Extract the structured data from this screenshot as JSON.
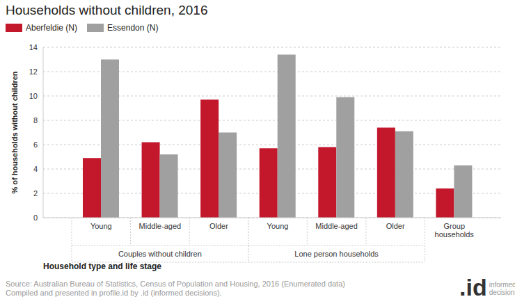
{
  "chart_data": {
    "type": "bar",
    "title": "Households without children, 2016",
    "categories": [
      "Young",
      "Middle-aged",
      "Older",
      "Young",
      "Middle-aged",
      "Older",
      "Group households"
    ],
    "groups": [
      "Couples without children",
      "Couples without children",
      "Couples without children",
      "Lone person households",
      "Lone person households",
      "Lone person households",
      null
    ],
    "series": [
      {
        "name": "Aberfeldie (N)",
        "color": "#c3172c",
        "values": [
          4.9,
          6.2,
          9.7,
          5.7,
          5.8,
          7.4,
          2.4
        ]
      },
      {
        "name": "Essendon (N)",
        "color": "#a0a0a0",
        "values": [
          13.0,
          5.2,
          7.0,
          13.4,
          9.9,
          7.1,
          4.3
        ]
      }
    ],
    "y_label": "% of households without children",
    "x_label": "Household type and life stage",
    "ylim": [
      0,
      14
    ],
    "yticks": [
      0,
      2,
      4,
      6,
      8,
      10,
      12,
      14
    ],
    "grid": true,
    "legend": "top-left",
    "source": [
      "Source: Australian Bureau of Statistics, Census of Population and Housing, 2016 (Enumerated data)",
      "Compiled and presented in profile.id by .id (informed decisions)."
    ],
    "logo": {
      "mark": ".id",
      "text": [
        "informed",
        "decisions"
      ]
    }
  }
}
